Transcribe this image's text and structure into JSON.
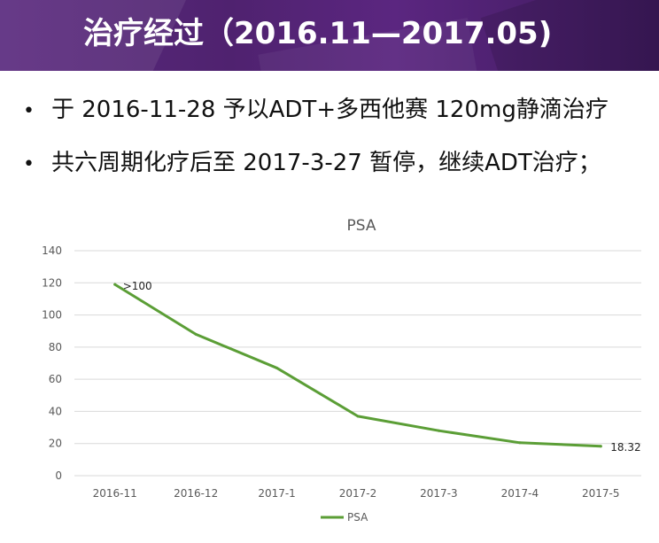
{
  "slide": {
    "title": "治疗经过（2016.11—2017.05)",
    "bullets": [
      "于 2016-11-28 予以ADT+多西他赛 120mg静滴治疗",
      "共六周期化疗后至 2017-3-27 暂停，继续ADT治疗；"
    ]
  },
  "chart_data": {
    "type": "line",
    "title": "PSA",
    "categories": [
      "2016-11",
      "2016-12",
      "2017-1",
      "2017-2",
      "2017-3",
      "2017-4",
      "2017-5"
    ],
    "series": [
      {
        "name": "PSA",
        "color": "#5b9e36",
        "values": [
          119,
          88,
          67,
          37,
          28,
          20.5,
          18.32
        ]
      }
    ],
    "ylim": [
      0,
      140
    ],
    "yticks": [
      0,
      20,
      40,
      60,
      80,
      100,
      120,
      140
    ],
    "grid": true,
    "legend": "bottom",
    "annotations": [
      {
        "index": 0,
        "text": ">100"
      },
      {
        "index": 6,
        "text": "18.32"
      }
    ]
  }
}
